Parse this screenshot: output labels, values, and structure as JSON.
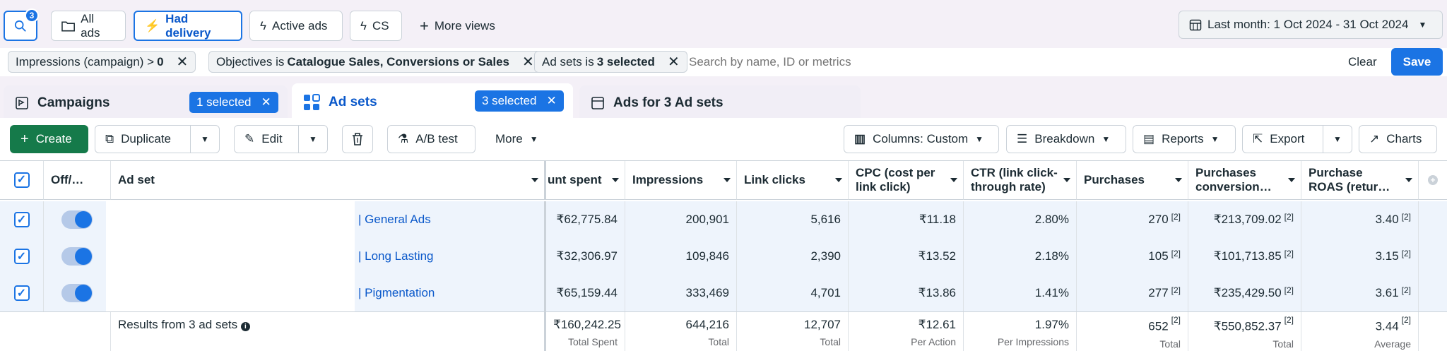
{
  "views": {
    "search_badge": "3",
    "all_ads": "All ads",
    "had_delivery": "Had delivery",
    "active_ads": "Active ads",
    "cs": "CS",
    "more_views": "More views",
    "date_range": "Last month: 1 Oct 2024 - 31 Oct 2024"
  },
  "filters": {
    "chip1_prefix": "Impressions (campaign) > ",
    "chip1_bold": "0",
    "chip2_prefix": "Objectives is ",
    "chip2_bold": "Catalogue Sales, Conversions or Sales",
    "chip3_prefix": "Ad sets is ",
    "chip3_bold": "3 selected",
    "search_placeholder": "Search by name, ID or metrics",
    "clear": "Clear",
    "save": "Save"
  },
  "tabs": {
    "campaigns": "Campaigns",
    "campaigns_selected": "1 selected",
    "adsets": "Ad sets",
    "adsets_selected": "3 selected",
    "ads": "Ads for 3 Ad sets"
  },
  "toolbar": {
    "create": "Create",
    "duplicate": "Duplicate",
    "edit": "Edit",
    "ab_test": "A/B test",
    "more": "More",
    "columns": "Columns: Custom",
    "breakdown": "Breakdown",
    "reports": "Reports",
    "export": "Export",
    "charts": "Charts"
  },
  "table": {
    "headers": {
      "offon": "Off/…",
      "adset": "Ad set",
      "spent": "unt spent",
      "impressions": "Impressions",
      "link_clicks": "Link clicks",
      "cpc": "CPC (cost per link click)",
      "ctr": "CTR (link click-through rate)",
      "purchases": "Purchases",
      "purchases_value": "Purchases conversion…",
      "roas": "Purchase ROAS (retur…"
    },
    "rows": [
      {
        "name": "| General Ads",
        "spent": "₹62,775.84",
        "impressions": "200,901",
        "clicks": "5,616",
        "cpc": "₹11.18",
        "ctr": "2.80%",
        "purchases": "270",
        "value": "₹213,709.02",
        "roas": "3.40",
        "note": "[2]"
      },
      {
        "name": "| Long Lasting",
        "spent": "₹32,306.97",
        "impressions": "109,846",
        "clicks": "2,390",
        "cpc": "₹13.52",
        "ctr": "2.18%",
        "purchases": "105",
        "value": "₹101,713.85",
        "roas": "3.15",
        "note": "[2]"
      },
      {
        "name": "| Pigmentation",
        "spent": "₹65,159.44",
        "impressions": "333,469",
        "clicks": "4,701",
        "cpc": "₹13.86",
        "ctr": "1.41%",
        "purchases": "277",
        "value": "₹235,429.50",
        "roas": "3.61",
        "note": "[2]"
      }
    ],
    "footer": {
      "label": "Results from 3 ad sets",
      "spent": "₹160,242.25",
      "spent_sub": "Total Spent",
      "impressions": "644,216",
      "impressions_sub": "Total",
      "clicks": "12,707",
      "clicks_sub": "Total",
      "cpc": "₹12.61",
      "cpc_sub": "Per Action",
      "ctr": "1.97%",
      "ctr_sub": "Per Impressions",
      "purchases": "652",
      "purchases_sub": "Total",
      "value": "₹550,852.37",
      "value_sub": "Total",
      "roas": "3.44",
      "roas_sub": "Average",
      "note": "[2]"
    }
  }
}
